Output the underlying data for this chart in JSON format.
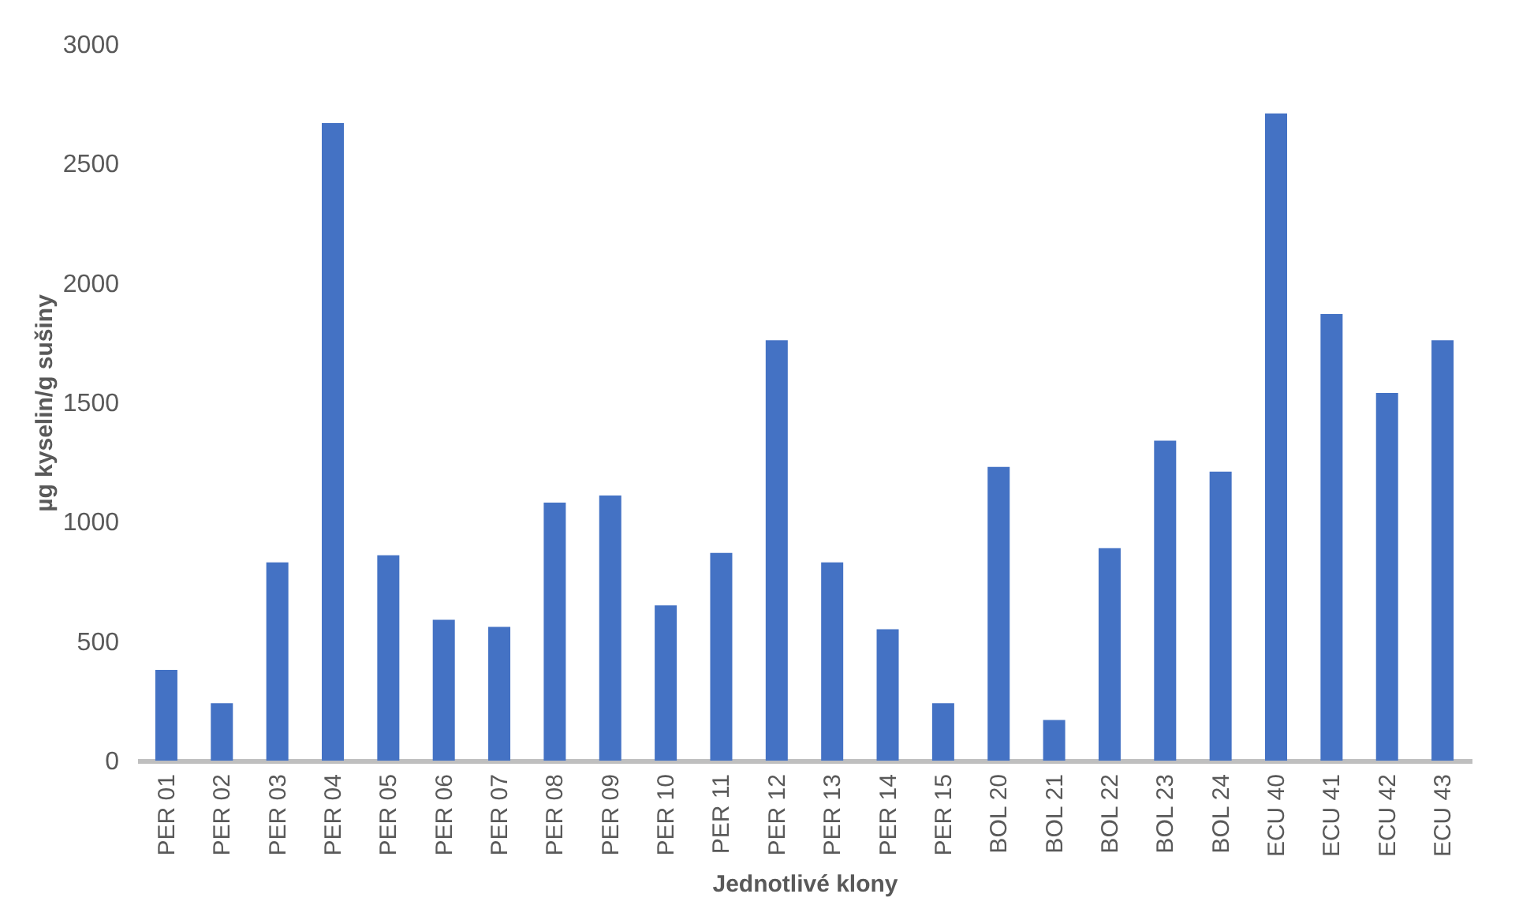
{
  "chart_data": {
    "type": "bar",
    "xlabel": "Jednotlivé klony",
    "ylabel": "µg kyselin/g sušiny",
    "categories": [
      "PER 01",
      "PER 02",
      "PER 03",
      "PER 04",
      "PER 05",
      "PER 06",
      "PER 07",
      "PER 08",
      "PER 09",
      "PER 10",
      "PER 11",
      "PER 12",
      "PER 13",
      "PER 14",
      "PER 15",
      "BOL 20",
      "BOL 21",
      "BOL 22",
      "BOL 23",
      "BOL 24",
      "ECU 40",
      "ECU 41",
      "ECU 42",
      "ECU 43"
    ],
    "values": [
      380,
      240,
      830,
      2670,
      860,
      590,
      560,
      1080,
      1110,
      650,
      870,
      1760,
      830,
      550,
      240,
      1230,
      170,
      890,
      1340,
      1210,
      2710,
      1870,
      1540,
      1760
    ],
    "color": "#4472c4",
    "ylim": [
      0,
      3000
    ],
    "yticks": [
      0,
      500,
      1000,
      1500,
      2000,
      2500,
      3000
    ],
    "grid": false
  }
}
